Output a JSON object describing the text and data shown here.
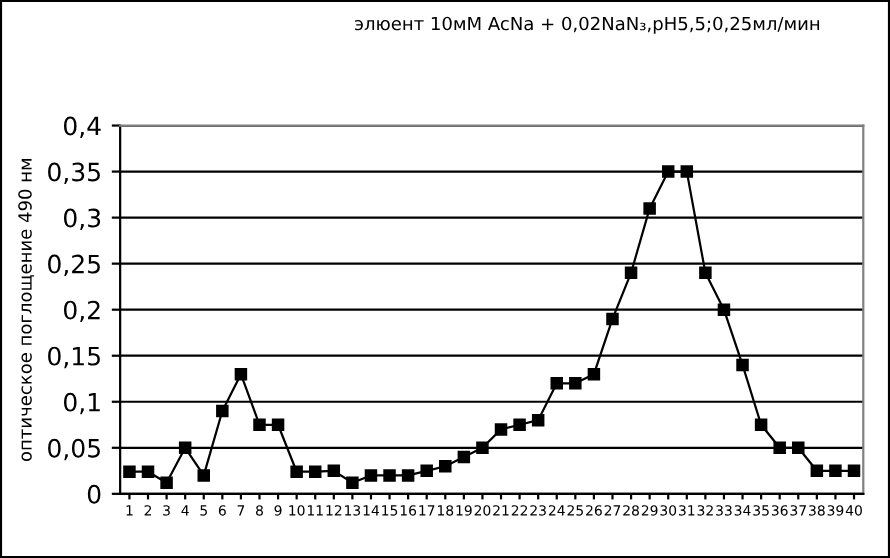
{
  "chart_data": {
    "type": "line",
    "title": "элюент 10мМ AcNa + 0,02NaN₃,pH5,5;0,25мл/мин",
    "ylabel": "оптическое поглощение 490 нм",
    "categories": [
      "1",
      "2",
      "3",
      "4",
      "5",
      "6",
      "7",
      "8",
      "9",
      "10",
      "11",
      "12",
      "13",
      "14",
      "15",
      "16",
      "17",
      "18",
      "19",
      "20",
      "21",
      "22",
      "23",
      "24",
      "25",
      "26",
      "27",
      "28",
      "29",
      "30",
      "31",
      "32",
      "33",
      "34",
      "35",
      "36",
      "37",
      "38",
      "39",
      "40"
    ],
    "series": [
      {
        "color": "#000000",
        "values": [
          0.024,
          0.024,
          0.012,
          0.05,
          0.02,
          0.09,
          0.13,
          0.075,
          0.075,
          0.024,
          0.024,
          0.025,
          0.012,
          0.02,
          0.02,
          0.02,
          0.025,
          0.03,
          0.04,
          0.05,
          0.07,
          0.075,
          0.08,
          0.12,
          0.12,
          0.13,
          0.19,
          0.24,
          0.31,
          0.35,
          0.35,
          0.24,
          0.2,
          0.14,
          0.075,
          0.05,
          0.05,
          0.025,
          0.025,
          0.025
        ]
      }
    ],
    "ylim": [
      0,
      0.4
    ],
    "yticks": [
      {
        "value": 0,
        "label": "0"
      },
      {
        "value": 0.05,
        "label": "0,05"
      },
      {
        "value": 0.1,
        "label": "0,1"
      },
      {
        "value": 0.15,
        "label": "0,15"
      },
      {
        "value": 0.2,
        "label": "0,2"
      },
      {
        "value": 0.25,
        "label": "0,25"
      },
      {
        "value": 0.3,
        "label": "0,3"
      },
      {
        "value": 0.35,
        "label": "0,35"
      },
      {
        "value": 0.4,
        "label": "0,4"
      }
    ],
    "grid": "y",
    "marker": "square",
    "line_style": "solid"
  }
}
